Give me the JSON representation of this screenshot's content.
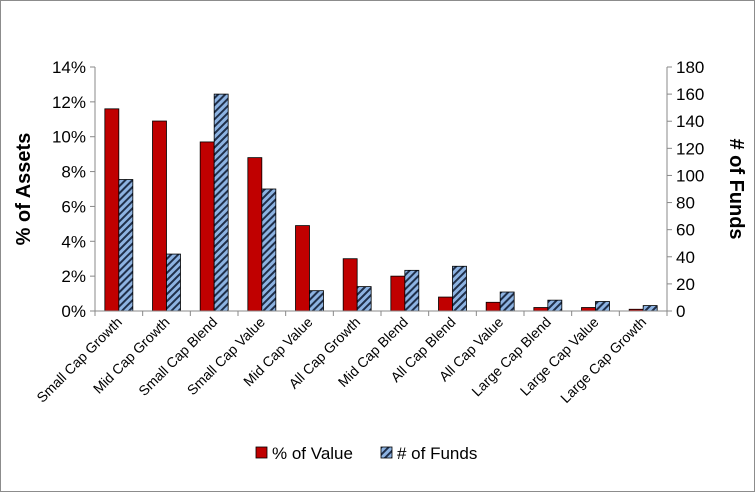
{
  "chart_data": {
    "type": "bar",
    "categories": [
      "Small Cap Growth",
      "Mid Cap Growth",
      "Small Cap Blend",
      "Small Cap Value",
      "Mid Cap Value",
      "All Cap Growth",
      "Mid Cap Blend",
      "All Cap Blend",
      "All Cap Value",
      "Large Cap Blend",
      "Large Cap Value",
      "Large Cap Growth"
    ],
    "series": [
      {
        "name": "% of Value",
        "axis": "left",
        "color": "#c00000",
        "values": [
          11.6,
          10.9,
          9.7,
          8.8,
          4.9,
          3.0,
          2.0,
          0.8,
          0.5,
          0.2,
          0.2,
          0.1
        ]
      },
      {
        "name": "# of Funds",
        "axis": "right",
        "color": "#8db3e2",
        "pattern": "diagonal-stripes",
        "values": [
          97,
          42,
          160,
          90,
          15,
          18,
          30,
          33,
          14,
          8,
          7,
          4
        ]
      }
    ],
    "y_left": {
      "label": "% of Assets",
      "min": 0,
      "max": 14,
      "step": 2,
      "ticks": [
        "0%",
        "2%",
        "4%",
        "6%",
        "8%",
        "10%",
        "12%",
        "14%"
      ]
    },
    "y_right": {
      "label": "# of Funds",
      "min": 0,
      "max": 180,
      "step": 20,
      "ticks": [
        "0",
        "20",
        "40",
        "60",
        "80",
        "100",
        "120",
        "140",
        "160",
        "180"
      ]
    },
    "grid": false,
    "legend_position": "bottom"
  }
}
